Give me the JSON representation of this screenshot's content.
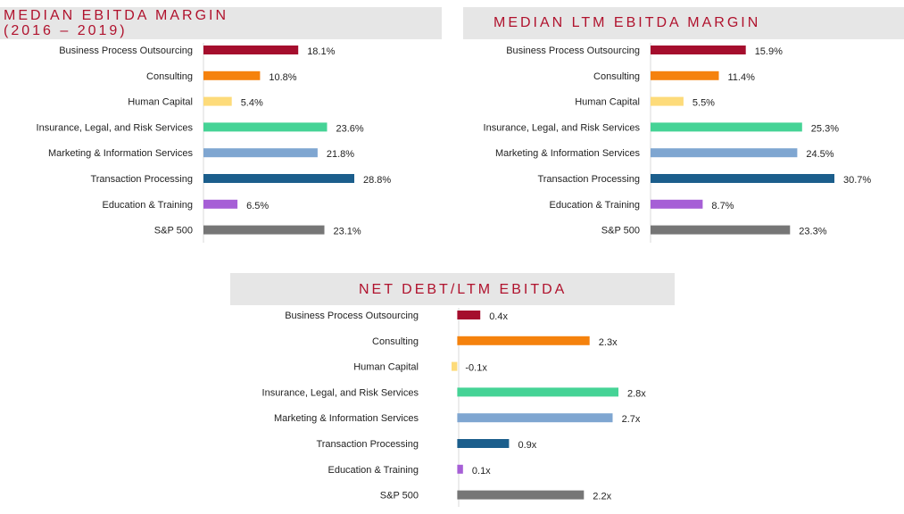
{
  "chart_data": [
    {
      "type": "bar",
      "orientation": "horizontal",
      "title_lines": [
        "MEDIAN EBITDA MARGIN",
        "(2016 – 2019)"
      ],
      "categories": [
        "Business Process Outsourcing",
        "Consulting",
        "Human Capital",
        "Insurance, Legal, and Risk Services",
        "Marketing & Information Services",
        "Transaction Processing",
        "Education & Training",
        "S&P 500"
      ],
      "values": [
        18.1,
        10.8,
        5.4,
        23.6,
        21.8,
        28.8,
        6.5,
        23.1
      ],
      "value_labels": [
        "18.1%",
        "10.8%",
        "5.4%",
        "23.6%",
        "21.8%",
        "28.8%",
        "6.5%",
        "23.1%"
      ],
      "xlim": [
        0,
        30
      ],
      "grid": false,
      "legend": "none"
    },
    {
      "type": "bar",
      "orientation": "horizontal",
      "title_lines": [
        "MEDIAN LTM EBITDA MARGIN"
      ],
      "categories": [
        "Business Process Outsourcing",
        "Consulting",
        "Human Capital",
        "Insurance, Legal, and Risk Services",
        "Marketing & Information Services",
        "Transaction Processing",
        "Education & Training",
        "S&P 500"
      ],
      "values": [
        15.9,
        11.4,
        5.5,
        25.3,
        24.5,
        30.7,
        8.7,
        23.3
      ],
      "value_labels": [
        "15.9%",
        "11.4%",
        "5.5%",
        "25.3%",
        "24.5%",
        "30.7%",
        "8.7%",
        "23.3%"
      ],
      "xlim": [
        0,
        30.7
      ],
      "grid": false,
      "legend": "none"
    },
    {
      "type": "bar",
      "orientation": "horizontal",
      "title_lines": [
        "NET DEBT/LTM EBITDA"
      ],
      "categories": [
        "Business Process Outsourcing",
        "Consulting",
        "Human Capital",
        "Insurance, Legal, and Risk Services",
        "Marketing & Information Services",
        "Transaction Processing",
        "Education & Training",
        "S&P 500"
      ],
      "values": [
        0.4,
        2.3,
        -0.1,
        2.8,
        2.7,
        0.9,
        0.1,
        2.2
      ],
      "value_labels": [
        "0.4x",
        "2.3x",
        "-0.1x",
        "2.8x",
        "2.7x",
        "0.9x",
        "0.1x",
        "2.2x"
      ],
      "xlim": [
        -0.1,
        2.8
      ],
      "grid": false,
      "legend": "none"
    }
  ],
  "colors": [
    "#a50e2d",
    "#f5820d",
    "#fddb7a",
    "#45d396",
    "#7fa6d1",
    "#1b5e8c",
    "#a65fd6",
    "#767676"
  ],
  "title_color": "#b0122d",
  "title_bar_color": "#e6e6e6"
}
